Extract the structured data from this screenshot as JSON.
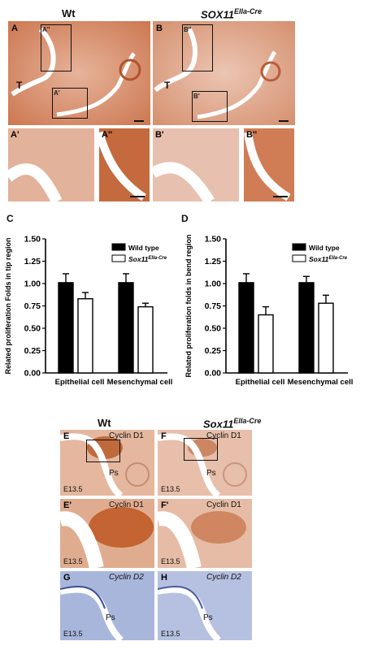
{
  "top": {
    "col_wt": "Wt",
    "col_mut": "SOX11",
    "col_mut_sup": "Ella-Cre",
    "panels": {
      "A": "A",
      "B": "B",
      "A1": "A'",
      "A2": "A''",
      "B1": "B'",
      "B2": "B''",
      "A_tag1": "A''",
      "A_tag2": "A'",
      "B_tag1": "B''",
      "B_tag2": "B'",
      "T": "T"
    }
  },
  "charts_header": {
    "C": "C",
    "D": "D"
  },
  "chart_data": [
    {
      "type": "bar",
      "categories": [
        "Epithelial cell",
        "Mesenchymal cell"
      ],
      "series": [
        {
          "name": "Wild type",
          "values": [
            1.01,
            1.01
          ],
          "errors": [
            0.1,
            0.1
          ]
        },
        {
          "name": "Sox11",
          "name_sup": "Ella-Cre",
          "values": [
            0.83,
            0.74
          ],
          "errors": [
            0.07,
            0.04
          ]
        }
      ],
      "ylabel": "Related proliferation Folds in tip region",
      "ylim": [
        0,
        1.5
      ],
      "yticks": [
        "0.00",
        "0.25",
        "0.50",
        "0.75",
        "1.00",
        "1.25",
        "1.50"
      ],
      "legend": "top-right"
    },
    {
      "type": "bar",
      "categories": [
        "Epithelial cell",
        "Mesenchymal cell"
      ],
      "series": [
        {
          "name": "Wild type",
          "values": [
            1.01,
            1.01
          ],
          "errors": [
            0.1,
            0.07
          ]
        },
        {
          "name": "Sox11",
          "name_sup": "Ella-Cre",
          "values": [
            0.65,
            0.78
          ],
          "errors": [
            0.09,
            0.09
          ]
        }
      ],
      "ylabel": "Related proliferation folds in bend region",
      "ylim": [
        0,
        1.5
      ],
      "yticks": [
        "0.00",
        "0.25",
        "0.50",
        "0.75",
        "1.00",
        "1.25",
        "1.50"
      ],
      "legend": "top-right"
    }
  ],
  "bottom": {
    "col_wt": "Wt",
    "col_mut": "Sox11",
    "col_mut_sup": "Ella-Cre",
    "E": "E",
    "F": "F",
    "E1": "E'",
    "F1": "F'",
    "G": "G",
    "H": "H",
    "cyclin_d1": "Cyclin D1",
    "cyclin_d2": "Cyclin D2",
    "ps": "Ps",
    "age": "E13.5"
  },
  "colors": {
    "black_bar": "#000000",
    "white_bar": "#ffffff",
    "tissue_brown": "#c87a55",
    "tissue_pink": "#e6b9a8",
    "tissue_blue": "#9aa9d1"
  }
}
